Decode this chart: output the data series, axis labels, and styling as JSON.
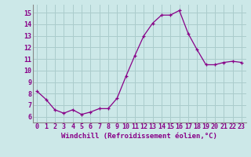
{
  "x": [
    0,
    1,
    2,
    3,
    4,
    5,
    6,
    7,
    8,
    9,
    10,
    11,
    12,
    13,
    14,
    15,
    16,
    17,
    18,
    19,
    20,
    21,
    22,
    23
  ],
  "y": [
    8.2,
    7.5,
    6.6,
    6.3,
    6.6,
    6.2,
    6.4,
    6.7,
    6.7,
    7.6,
    9.5,
    11.3,
    13.0,
    14.1,
    14.8,
    14.8,
    15.2,
    13.2,
    11.8,
    10.5,
    10.5,
    10.7,
    10.8,
    10.7
  ],
  "line_color": "#880088",
  "marker": "+",
  "bg_color": "#cce8e8",
  "grid_color": "#aacccc",
  "xlabel": "Windchill (Refroidissement éolien,°C)",
  "xlabel_fontsize": 6.5,
  "tick_fontsize": 6.0,
  "ylim": [
    5.5,
    15.7
  ],
  "xlim": [
    -0.5,
    23.5
  ],
  "yticks": [
    6,
    7,
    8,
    9,
    10,
    11,
    12,
    13,
    14,
    15
  ],
  "xticks": [
    0,
    1,
    2,
    3,
    4,
    5,
    6,
    7,
    8,
    9,
    10,
    11,
    12,
    13,
    14,
    15,
    16,
    17,
    18,
    19,
    20,
    21,
    22,
    23
  ],
  "markersize": 3.5,
  "linewidth": 0.9
}
